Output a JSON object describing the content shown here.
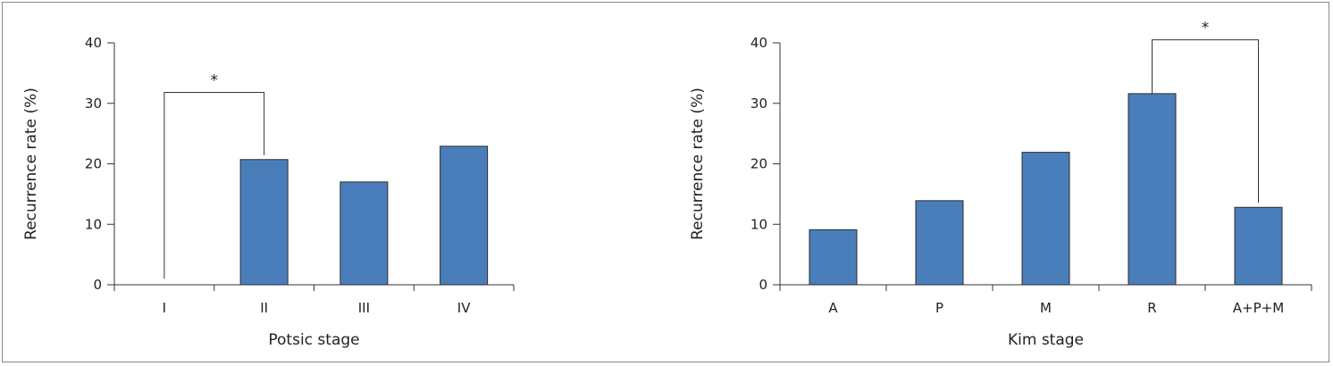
{
  "chart_data": [
    {
      "type": "bar",
      "categories": [
        "I",
        "II",
        "III",
        "IV"
      ],
      "values": [
        0,
        20.7,
        17.0,
        22.9
      ],
      "xlabel": "Potsic stage",
      "ylabel": "Recurrence rate (%)",
      "ylim": [
        0,
        40
      ],
      "yticks": [
        "0",
        "10",
        "20",
        "30",
        "40"
      ],
      "bar_color": "#4A7EBB",
      "grid": false,
      "significance": {
        "from": "I",
        "to": "II",
        "label": "*",
        "height": 31.8
      }
    },
    {
      "type": "bar",
      "categories": [
        "A",
        "P",
        "M",
        "R",
        "A+P+M"
      ],
      "values": [
        9.1,
        13.9,
        21.9,
        31.6,
        12.8
      ],
      "xlabel": "Kim stage",
      "ylabel": "Recurrence rate (%)",
      "ylim": [
        0,
        40
      ],
      "yticks": [
        "0",
        "10",
        "20",
        "30",
        "40"
      ],
      "bar_color": "#4A7EBB",
      "grid": false,
      "significance": {
        "from": "R",
        "to": "A+P+M",
        "label": "*",
        "height": 40.5
      }
    }
  ]
}
